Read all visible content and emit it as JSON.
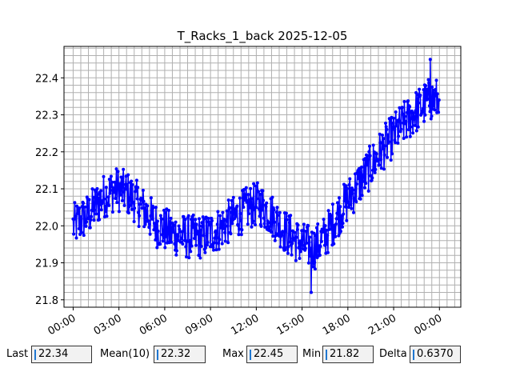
{
  "chart_data": {
    "type": "line",
    "title": "T_Racks_1_back 2025-12-05",
    "xlabel": "",
    "ylabel": "",
    "x_ticks": [
      "00:00",
      "03:00",
      "06:00",
      "09:00",
      "12:00",
      "15:00",
      "18:00",
      "21:00",
      "00:00"
    ],
    "y_ticks": [
      "21.8",
      "21.9",
      "22.0",
      "22.1",
      "22.2",
      "22.3",
      "22.4"
    ],
    "xlim_hours": [
      -0.6,
      25.4
    ],
    "ylim": [
      21.78,
      22.485
    ],
    "grid": true,
    "color": "#0000ff",
    "trend": [
      [
        0.0,
        22.0
      ],
      [
        1.0,
        22.03
      ],
      [
        2.0,
        22.08
      ],
      [
        2.8,
        22.1
      ],
      [
        3.5,
        22.09
      ],
      [
        4.5,
        22.05
      ],
      [
        5.5,
        22.0
      ],
      [
        6.5,
        21.98
      ],
      [
        7.5,
        21.97
      ],
      [
        8.5,
        21.97
      ],
      [
        9.5,
        21.99
      ],
      [
        10.5,
        22.02
      ],
      [
        11.5,
        22.05
      ],
      [
        12.2,
        22.06
      ],
      [
        13.0,
        22.03
      ],
      [
        14.0,
        21.98
      ],
      [
        15.0,
        21.95
      ],
      [
        15.8,
        21.94
      ],
      [
        16.5,
        21.97
      ],
      [
        17.5,
        22.04
      ],
      [
        18.5,
        22.1
      ],
      [
        19.5,
        22.16
      ],
      [
        20.5,
        22.22
      ],
      [
        21.5,
        22.27
      ],
      [
        22.5,
        22.31
      ],
      [
        23.3,
        22.34
      ],
      [
        24.0,
        22.34
      ]
    ]
  },
  "stats": {
    "last_label": "Last",
    "last_value": "22.34",
    "mean_label": "Mean(10)",
    "mean_value": "22.32",
    "max_label": "Max",
    "max_value": "22.45",
    "min_label": "Min",
    "min_value": "21.82",
    "delta_label": "Delta",
    "delta_value": "0.6370"
  }
}
